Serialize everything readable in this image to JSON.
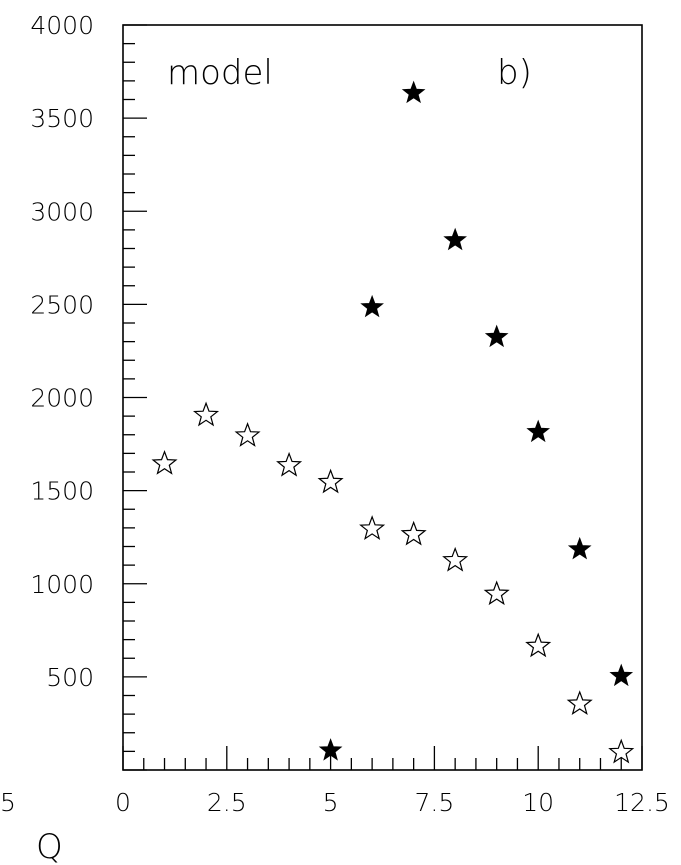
{
  "chart_data": {
    "type": "scatter",
    "title": "",
    "xlabel": "Q",
    "ylabel": "",
    "annotations": [
      "model",
      "b)"
    ],
    "xlim": [
      0,
      12.5
    ],
    "ylim": [
      0,
      4000
    ],
    "x_ticks": [
      "0",
      "2.5",
      "5",
      "7.5",
      "10",
      "12.5"
    ],
    "y_ticks": [
      "500",
      "1000",
      "1500",
      "2000",
      "2500",
      "3000",
      "3500",
      "4000"
    ],
    "x_cut_label": "5",
    "grid": false,
    "legend": "none",
    "series": [
      {
        "marker": "open-star",
        "x": [
          1,
          2,
          3,
          4,
          5,
          6,
          7,
          8,
          9,
          10,
          11,
          12
        ],
        "y": [
          1650,
          1910,
          1800,
          1640,
          1550,
          1300,
          1270,
          1130,
          950,
          670,
          360,
          100
        ]
      },
      {
        "marker": "filled-star",
        "x": [
          5,
          6,
          7,
          8,
          9,
          10,
          11,
          12
        ],
        "y": [
          110,
          2490,
          3640,
          2850,
          2330,
          1820,
          1190,
          510
        ]
      }
    ]
  }
}
